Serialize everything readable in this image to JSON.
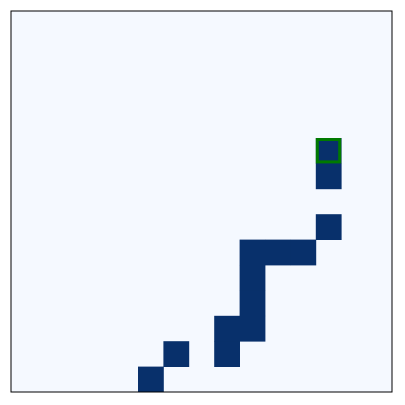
{
  "game": {
    "grid_size": 15,
    "colors": {
      "background": "#ffffff",
      "board": "#f5f9ff",
      "filled": "#08306b",
      "border": "#000000",
      "highlight": "#007a00"
    },
    "filled_cells": [
      [
        12,
        5
      ],
      [
        12,
        6
      ],
      [
        12,
        8
      ],
      [
        9,
        9
      ],
      [
        10,
        9
      ],
      [
        11,
        9
      ],
      [
        9,
        10
      ],
      [
        9,
        11
      ],
      [
        8,
        12
      ],
      [
        9,
        12
      ],
      [
        6,
        13
      ],
      [
        8,
        13
      ],
      [
        5,
        14
      ]
    ],
    "highlight_cell": [
      12,
      5
    ]
  }
}
